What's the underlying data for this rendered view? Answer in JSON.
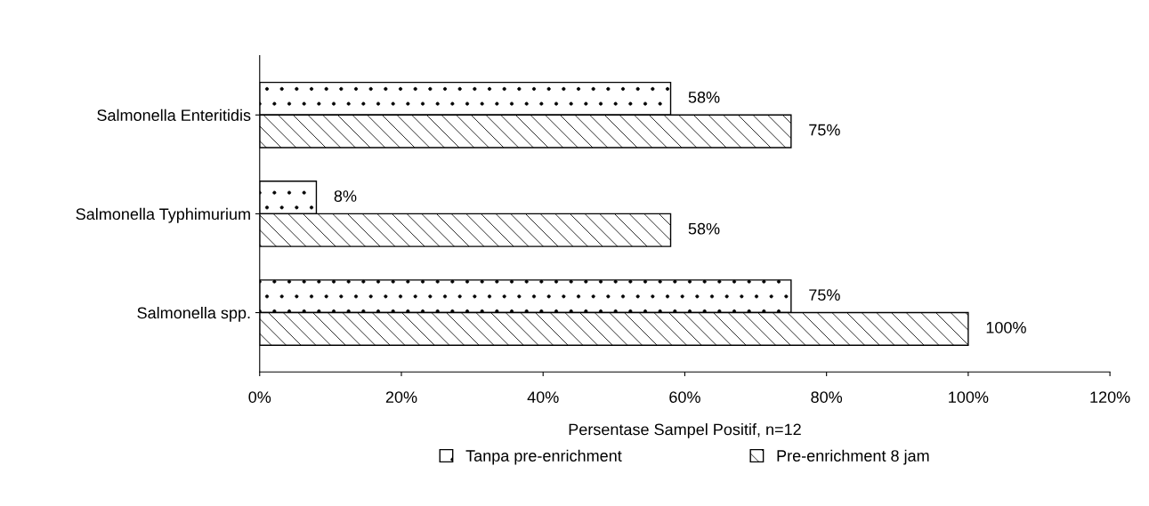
{
  "chart_data": {
    "type": "bar",
    "orientation": "horizontal",
    "xlabel": "Persentase Sampel Positif, n=12",
    "categories": [
      "Salmonella Enteritidis",
      "Salmonella Typhimurium",
      "Salmonella spp."
    ],
    "series": [
      {
        "name": "Tanpa pre-enrichment",
        "color": "#000000",
        "values": [
          58,
          8,
          75
        ],
        "value_labels": [
          "58%",
          "8%",
          "75%"
        ]
      },
      {
        "name": "Pre-enrichment 8 jam",
        "color": "#000000",
        "values": [
          75,
          58,
          100
        ],
        "value_labels": [
          "75%",
          "58%",
          "100%"
        ]
      }
    ],
    "xlim": [
      0,
      120
    ],
    "xticks": [
      {
        "value": 0,
        "label": "0%"
      },
      {
        "value": 20,
        "label": "20%"
      },
      {
        "value": 40,
        "label": "40%"
      },
      {
        "value": 60,
        "label": "60%"
      },
      {
        "value": 80,
        "label": "80%"
      },
      {
        "value": 100,
        "label": "100%"
      },
      {
        "value": 120,
        "label": "120%"
      }
    ],
    "grid": false,
    "legend": "bottom"
  }
}
